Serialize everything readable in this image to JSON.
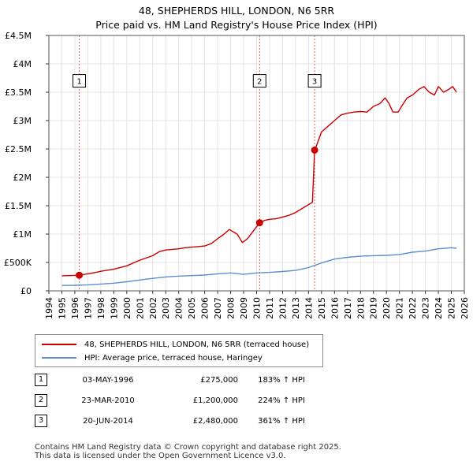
{
  "title_line1": "48, SHEPHERDS HILL, LONDON, N6 5RR",
  "title_line2": "Price paid vs. HM Land Registry's House Price Index (HPI)",
  "chart_data": {
    "type": "line",
    "ylim": [
      0,
      4500000
    ],
    "xlim": [
      1994,
      2026
    ],
    "y_ticks": [
      {
        "value": 0,
        "label": "£0"
      },
      {
        "value": 500000,
        "label": "£500K"
      },
      {
        "value": 1000000,
        "label": "£1M"
      },
      {
        "value": 1500000,
        "label": "£1.5M"
      },
      {
        "value": 2000000,
        "label": "£2M"
      },
      {
        "value": 2500000,
        "label": "£2.5M"
      },
      {
        "value": 3000000,
        "label": "£3M"
      },
      {
        "value": 3500000,
        "label": "£3.5M"
      },
      {
        "value": 4000000,
        "label": "£4M"
      },
      {
        "value": 4500000,
        "label": "£4.5M"
      }
    ],
    "x_ticks": [
      1994,
      1995,
      1996,
      1997,
      1998,
      1999,
      2000,
      2001,
      2002,
      2003,
      2004,
      2005,
      2006,
      2007,
      2008,
      2009,
      2010,
      2011,
      2012,
      2013,
      2014,
      2015,
      2016,
      2017,
      2018,
      2019,
      2020,
      2021,
      2022,
      2023,
      2024,
      2025,
      2026
    ],
    "series": [
      {
        "name": "48, SHEPHERDS HILL, LONDON, N6 5RR (terraced house)",
        "color": "#cc0000",
        "x": [
          1995.0,
          1995.5,
          1996.0,
          1996.34,
          1997.0,
          1997.5,
          1998.0,
          1999.0,
          2000.0,
          2000.5,
          2001.0,
          2002.0,
          2002.5,
          2003.0,
          2004.0,
          2004.5,
          2005.0,
          2006.0,
          2006.5,
          2007.0,
          2007.5,
          2007.9,
          2008.5,
          2008.9,
          2009.3,
          2009.7,
          2010.23,
          2010.6,
          2011.0,
          2011.5,
          2012.0,
          2012.5,
          2013.0,
          2013.5,
          2014.0,
          2014.3,
          2014.47,
          2014.6,
          2015.0,
          2015.5,
          2016.0,
          2016.5,
          2017.0,
          2017.5,
          2018.0,
          2018.5,
          2019.0,
          2019.5,
          2019.9,
          2020.2,
          2020.5,
          2020.9,
          2021.3,
          2021.6,
          2022.0,
          2022.5,
          2022.9,
          2023.3,
          2023.7,
          2024.0,
          2024.4,
          2024.8,
          2025.1,
          2025.4
        ],
        "y": [
          265000,
          268000,
          272000,
          275000,
          300000,
          320000,
          345000,
          380000,
          440000,
          490000,
          540000,
          620000,
          690000,
          720000,
          740000,
          760000,
          770000,
          790000,
          830000,
          920000,
          1000000,
          1080000,
          1000000,
          850000,
          920000,
          1040000,
          1200000,
          1240000,
          1260000,
          1270000,
          1300000,
          1330000,
          1380000,
          1450000,
          1520000,
          1560000,
          2480000,
          2550000,
          2800000,
          2900000,
          3000000,
          3100000,
          3130000,
          3150000,
          3160000,
          3150000,
          3250000,
          3300000,
          3400000,
          3300000,
          3150000,
          3150000,
          3300000,
          3400000,
          3450000,
          3550000,
          3600000,
          3500000,
          3450000,
          3600000,
          3500000,
          3550000,
          3600000,
          3500000
        ]
      },
      {
        "name": "HPI: Average price, terraced house, Haringey",
        "color": "#5b8fd0",
        "x": [
          1995.0,
          1996.0,
          1997.0,
          1998.0,
          1999.0,
          2000.0,
          2001.0,
          2002.0,
          2003.0,
          2004.0,
          2005.0,
          2006.0,
          2007.0,
          2008.0,
          2009.0,
          2010.0,
          2011.0,
          2012.0,
          2013.0,
          2014.0,
          2015.0,
          2016.0,
          2017.0,
          2018.0,
          2019.0,
          2020.0,
          2021.0,
          2022.0,
          2023.0,
          2024.0,
          2025.0,
          2025.4
        ],
        "y": [
          95000,
          97000,
          106000,
          120000,
          135000,
          160000,
          190000,
          220000,
          245000,
          260000,
          268000,
          278000,
          300000,
          315000,
          290000,
          315000,
          325000,
          340000,
          360000,
          410000,
          490000,
          560000,
          590000,
          610000,
          620000,
          625000,
          640000,
          680000,
          700000,
          740000,
          760000,
          750000
        ]
      }
    ],
    "sales": [
      {
        "label": "1",
        "x": 1996.34,
        "y": 275000
      },
      {
        "label": "2",
        "x": 2010.23,
        "y": 1200000
      },
      {
        "label": "3",
        "x": 2014.47,
        "y": 2480000
      }
    ],
    "marker_box_y": 3700000
  },
  "legend": {
    "property": "48, SHEPHERDS HILL, LONDON, N6 5RR (terraced house)",
    "hpi": "HPI: Average price, terraced house, Haringey"
  },
  "transactions": [
    {
      "num": "1",
      "date": "03-MAY-1996",
      "price": "£275,000",
      "hpi": "183% ↑ HPI"
    },
    {
      "num": "2",
      "date": "23-MAR-2010",
      "price": "£1,200,000",
      "hpi": "224% ↑ HPI"
    },
    {
      "num": "3",
      "date": "20-JUN-2014",
      "price": "£2,480,000",
      "hpi": "361% ↑ HPI"
    }
  ],
  "footer_line1": "Contains HM Land Registry data © Crown copyright and database right 2025.",
  "footer_line2": "This data is licensed under the Open Government Licence v3.0."
}
